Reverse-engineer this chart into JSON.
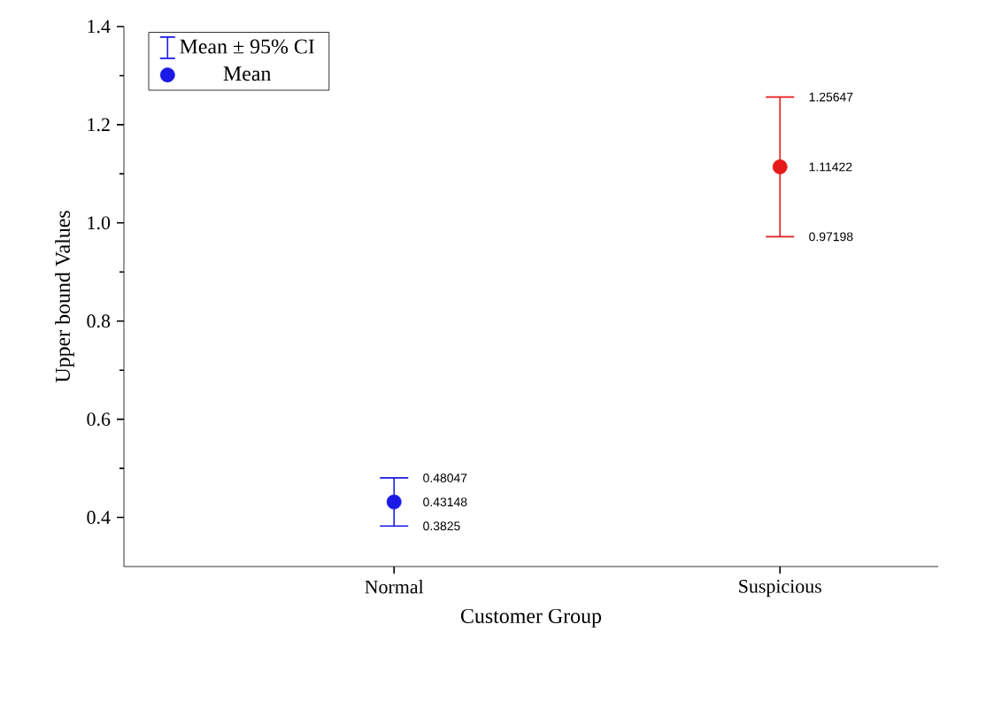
{
  "chart_data": {
    "type": "scatter",
    "xlabel": "Customer Group",
    "ylabel": "Upper bound Values",
    "legend_title": "Mean ± 95% CI",
    "legend": "top left",
    "marker": "circle",
    "data_labels": true,
    "categories": [
      "Normal",
      "Suspicious"
    ],
    "series": [
      {
        "name": "Mean",
        "colors": [
          "#1a1ae6",
          "#e61a1a"
        ],
        "values": [
          0.43148,
          1.11422
        ],
        "errors": [
          [
            0.3825,
            0.48047
          ],
          [
            0.97198,
            1.25647
          ]
        ]
      }
    ],
    "annotations": [
      {
        "text": "0.3825",
        "x": "Normal",
        "y": 0.3825
      },
      {
        "text": "0.48047",
        "x": "Normal",
        "y": 0.48047
      },
      {
        "text": "0.97198",
        "x": "Suspicious",
        "y": 0.97198
      },
      {
        "text": "1.25647",
        "x": "Suspicious",
        "y": 1.25647
      }
    ],
    "ylim": [
      0.3,
      1.4
    ],
    "yticks": [
      {
        "value": 0.4,
        "label": "0.4"
      },
      {
        "value": 0.6,
        "label": "0.6"
      },
      {
        "value": 0.8,
        "label": "0.8"
      },
      {
        "value": 1.0,
        "label": "1.0"
      },
      {
        "value": 1.2,
        "label": "1.2"
      },
      {
        "value": 1.4,
        "label": "1.4"
      }
    ]
  }
}
